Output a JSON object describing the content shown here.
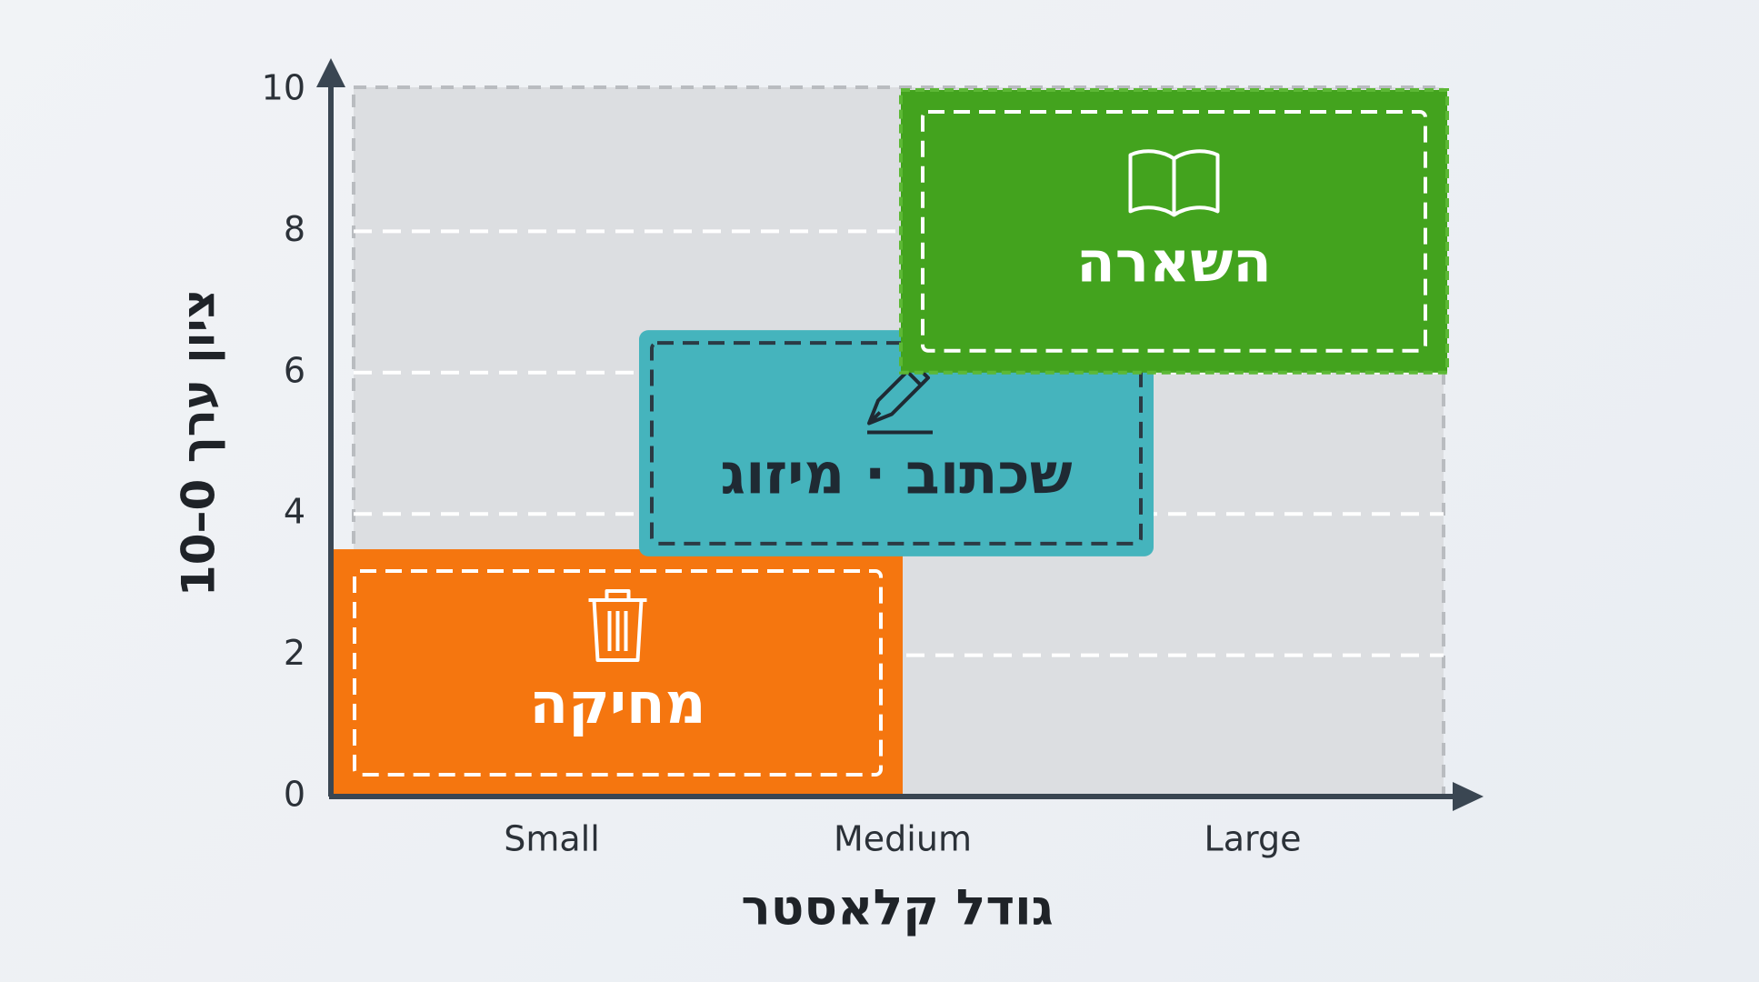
{
  "y_axis": {
    "label": "ציון ערך 0–10",
    "ticks": [
      0,
      2,
      4,
      6,
      8,
      10
    ],
    "range": [
      0,
      10
    ]
  },
  "x_axis": {
    "label": "גודל קלאסטר",
    "categories": [
      "Small",
      "Medium",
      "Large"
    ]
  },
  "regions": [
    {
      "label": "מחיקה",
      "color": "#f5760f",
      "text_color": "#ffffff",
      "y_range": [
        0,
        3.5
      ]
    },
    {
      "label": "שכתוב · מיזוג",
      "color": "#45b4bd",
      "text_color": "#1f2a33",
      "y_range": [
        3.4,
        6.6
      ]
    },
    {
      "label": "השארה",
      "color": "#43a31e",
      "text_color": "#ffffff",
      "y_range": [
        6,
        10
      ]
    }
  ]
}
